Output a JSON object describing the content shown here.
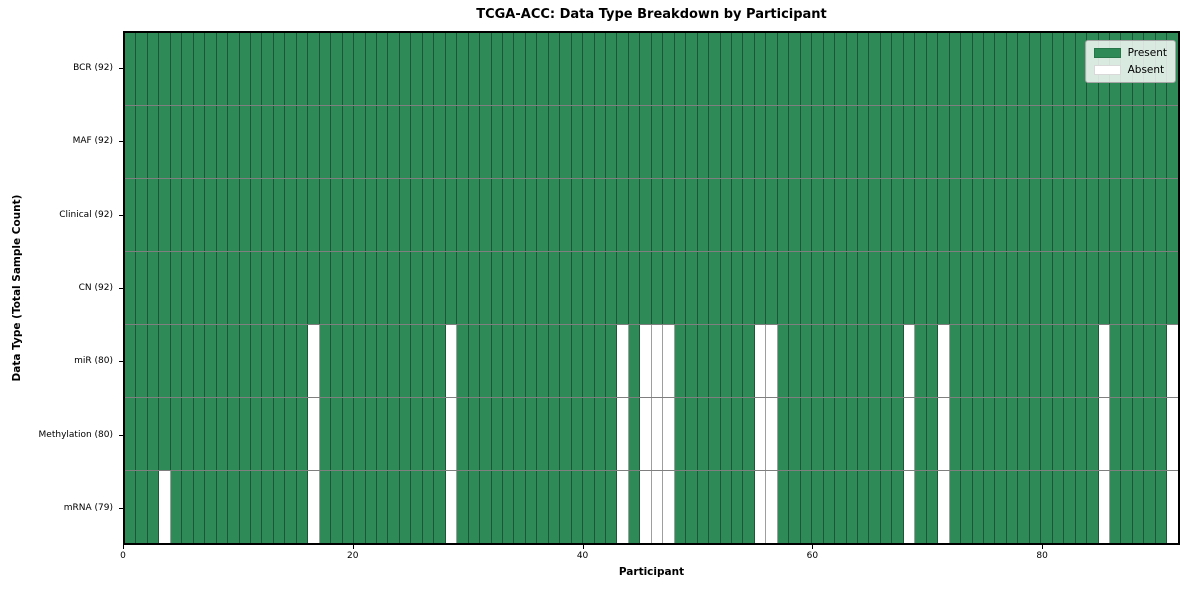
{
  "chart_data": {
    "type": "heatmap",
    "title": "TCGA-ACC: Data Type Breakdown by Participant",
    "xlabel": "Participant",
    "ylabel": "Data Type (Total Sample Count)",
    "n_participants": 92,
    "xlim": [
      0,
      92
    ],
    "x_ticks": [
      0,
      20,
      40,
      60,
      80
    ],
    "grid": false,
    "legend_position": "upper right",
    "legend": [
      {
        "label": "Present",
        "color": "#2E8B57"
      },
      {
        "label": "Absent",
        "color": "#FFFFFF"
      }
    ],
    "rows": [
      {
        "name": "bcr",
        "label": "BCR (92)",
        "count": 92,
        "absent_participants": []
      },
      {
        "name": "maf",
        "label": "MAF (92)",
        "count": 92,
        "absent_participants": []
      },
      {
        "name": "clinical",
        "label": "Clinical (92)",
        "count": 92,
        "absent_participants": []
      },
      {
        "name": "cn",
        "label": "CN (92)",
        "count": 92,
        "absent_participants": []
      },
      {
        "name": "mir",
        "label": "miR (80)",
        "count": 80,
        "absent_participants": [
          16,
          28,
          43,
          45,
          46,
          47,
          55,
          56,
          68,
          71,
          85,
          91
        ]
      },
      {
        "name": "methylation",
        "label": "Methylation (80)",
        "count": 80,
        "absent_participants": [
          16,
          28,
          43,
          45,
          46,
          47,
          55,
          56,
          68,
          71,
          85,
          91
        ]
      },
      {
        "name": "mrna",
        "label": "mRNA (79)",
        "count": 79,
        "absent_participants": [
          3,
          16,
          28,
          43,
          45,
          46,
          47,
          55,
          56,
          68,
          71,
          85,
          91
        ]
      }
    ],
    "colors": {
      "present": "#2E8B57",
      "absent": "#FFFFFF",
      "cell_edge": "rgba(0,0,0,0.38)",
      "frame": "#000000"
    }
  }
}
